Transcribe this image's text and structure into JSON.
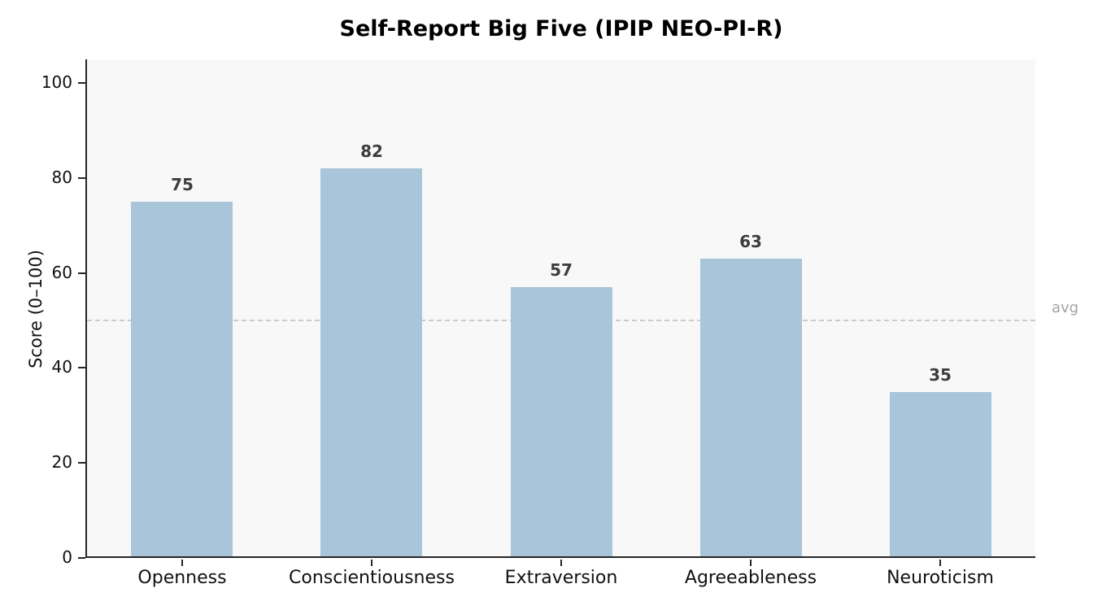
{
  "chart_data": {
    "type": "bar",
    "title": "Self-Report Big Five (IPIP NEO-PI-R)",
    "categories": [
      "Openness",
      "Conscientiousness",
      "Extraversion",
      "Agreeableness",
      "Neuroticism"
    ],
    "values": [
      75,
      82,
      57,
      63,
      35
    ],
    "xlabel": "",
    "ylabel": "Score (0–100)",
    "ylim": [
      0,
      105
    ],
    "yticks": [
      0,
      20,
      40,
      60,
      80,
      100
    ],
    "grid": false,
    "legend": "none",
    "reference_line": {
      "value": 50,
      "label": "avg"
    },
    "colors": {
      "bar": "#a8c5da",
      "value_label": "#3d3d3d",
      "axis": "#262626",
      "tick_label": "#111111",
      "plot_background": "#f8f8f8",
      "page_background": "#ffffff",
      "reference_line": "#cccccc",
      "reference_label": "#a3a3a3"
    }
  }
}
